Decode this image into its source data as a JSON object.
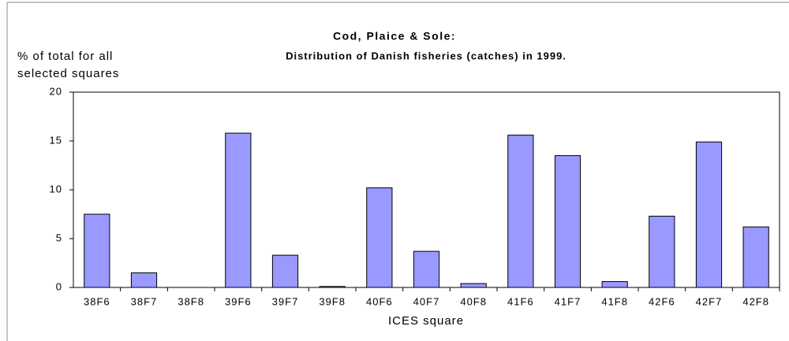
{
  "chart_data": {
    "type": "bar",
    "title": "Cod, Plaice & Sole:",
    "subtitle": "Distribution of Danish fisheries (catches) in 1999.",
    "ylabel": [
      "% of total for all",
      "selected squares"
    ],
    "xlabel": "ICES square",
    "categories": [
      "38F6",
      "38F7",
      "38F8",
      "39F6",
      "39F7",
      "39F8",
      "40F6",
      "40F7",
      "40F8",
      "41F6",
      "41F7",
      "41F8",
      "42F6",
      "42F7",
      "42F8"
    ],
    "values": [
      7.5,
      1.5,
      0,
      15.8,
      3.3,
      0.1,
      10.2,
      3.7,
      0.4,
      15.6,
      13.5,
      0.6,
      7.3,
      14.9,
      6.2
    ],
    "color": "#9999ff",
    "ylim": [
      0,
      20
    ],
    "yticks": [
      0,
      5,
      10,
      15,
      20
    ],
    "grid": false
  }
}
